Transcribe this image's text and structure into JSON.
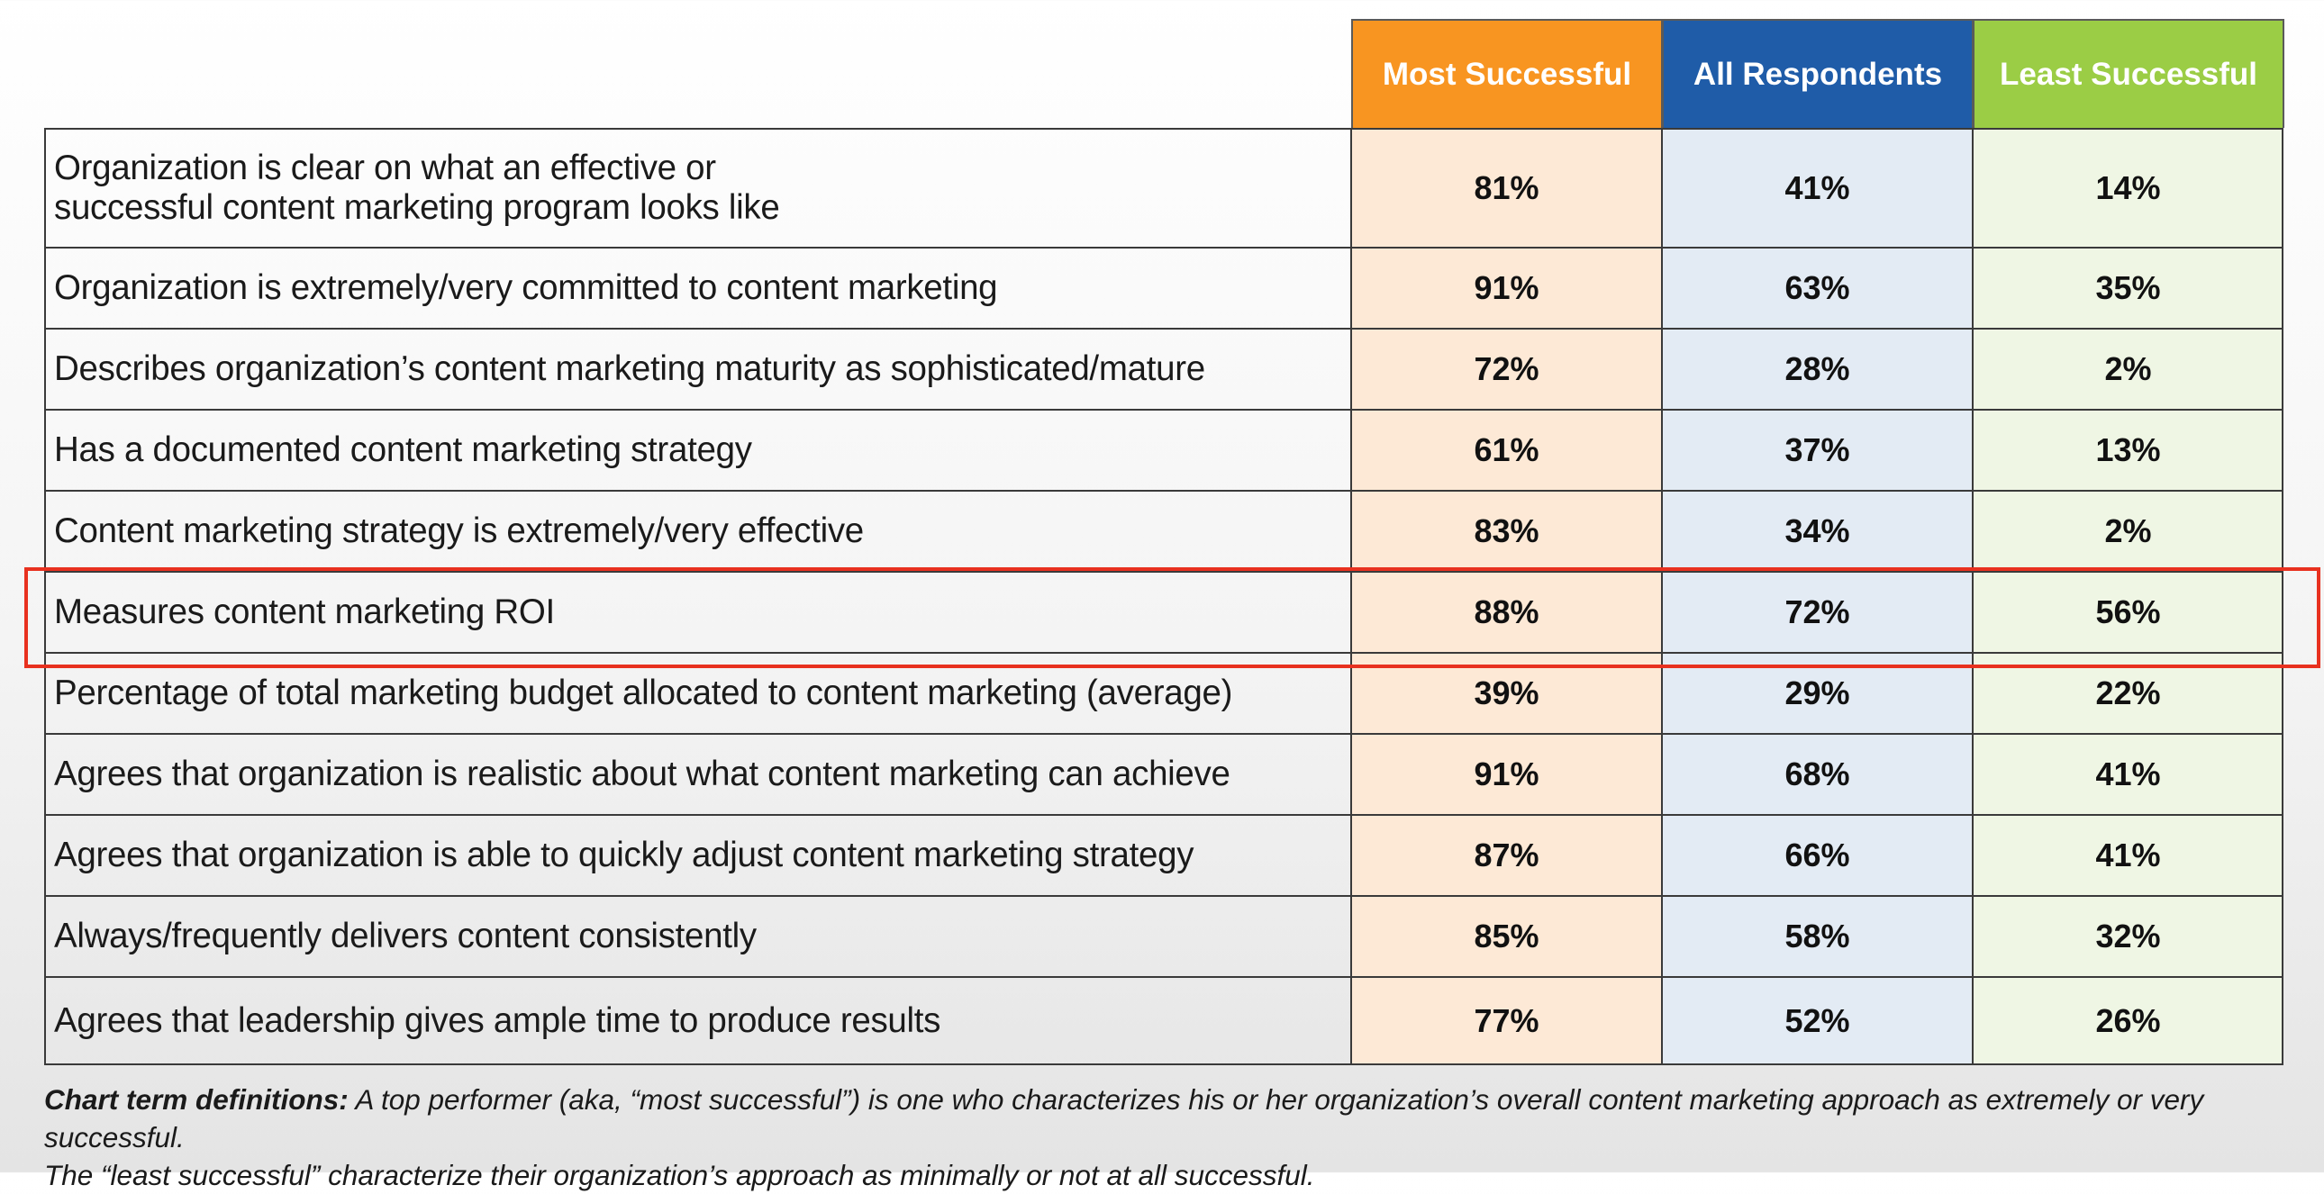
{
  "columns": {
    "most_successful": "Most Successful",
    "all_respondents": "All Respondents",
    "least_successful": "Least Successful"
  },
  "colors": {
    "most_header": "#f89521",
    "most_cell": "#fde9d6",
    "all_header": "#1f5ca8",
    "all_cell": "#e3ebf4",
    "least_header": "#9bcd45",
    "least_cell": "#eff6e4",
    "highlight": "#e8311f"
  },
  "chart_data": {
    "type": "table",
    "series": [
      {
        "name": "Most Successful",
        "values": [
          "81%",
          "91%",
          "72%",
          "61%",
          "83%",
          "88%",
          "39%",
          "91%",
          "87%",
          "85%",
          "77%"
        ]
      },
      {
        "name": "All Respondents",
        "values": [
          "41%",
          "63%",
          "28%",
          "37%",
          "34%",
          "72%",
          "29%",
          "68%",
          "66%",
          "58%",
          "52%"
        ]
      },
      {
        "name": "Least Successful",
        "values": [
          "14%",
          "35%",
          "2%",
          "13%",
          "2%",
          "56%",
          "22%",
          "41%",
          "41%",
          "32%",
          "26%"
        ]
      }
    ],
    "rows": [
      {
        "label_lines": [
          "Organization is clear on what an effective or",
          "successful content marketing program looks like"
        ],
        "most": "81%",
        "all": "41%",
        "least": "14%"
      },
      {
        "label_lines": [
          "Organization is extremely/very committed to content marketing"
        ],
        "most": "91%",
        "all": "63%",
        "least": "35%"
      },
      {
        "label_lines": [
          "Describes organization’s content marketing maturity as sophisticated/mature"
        ],
        "most": "72%",
        "all": "28%",
        "least": "2%"
      },
      {
        "label_lines": [
          "Has a documented content marketing strategy"
        ],
        "most": "61%",
        "all": "37%",
        "least": "13%"
      },
      {
        "label_lines": [
          "Content marketing strategy is extremely/very effective"
        ],
        "most": "83%",
        "all": "34%",
        "least": "2%"
      },
      {
        "label_lines": [
          "Measures content marketing ROI"
        ],
        "most": "88%",
        "all": "72%",
        "least": "56%",
        "highlighted": true
      },
      {
        "label_lines": [
          "Percentage of total marketing budget allocated to content marketing (average)"
        ],
        "most": "39%",
        "all": "29%",
        "least": "22%"
      },
      {
        "label_lines": [
          "Agrees that organization is realistic about what content marketing can achieve"
        ],
        "most": "91%",
        "all": "68%",
        "least": "41%"
      },
      {
        "label_lines": [
          "Agrees that organization is able to quickly adjust content marketing strategy"
        ],
        "most": "87%",
        "all": "66%",
        "least": "41%"
      },
      {
        "label_lines": [
          "Always/frequently delivers content consistently"
        ],
        "most": "85%",
        "all": "58%",
        "least": "32%"
      },
      {
        "label_lines": [
          "Agrees that leadership gives ample time to produce results"
        ],
        "most": "77%",
        "all": "52%",
        "least": "26%"
      }
    ]
  },
  "footnote": {
    "term": "Chart term definitions:",
    "line1": " A top performer (aka, “most successful”) is one who characterizes his or her organization’s overall content marketing approach as extremely or very successful.",
    "line2": "The “least successful” characterize their organization’s approach as minimally or not at all successful."
  }
}
